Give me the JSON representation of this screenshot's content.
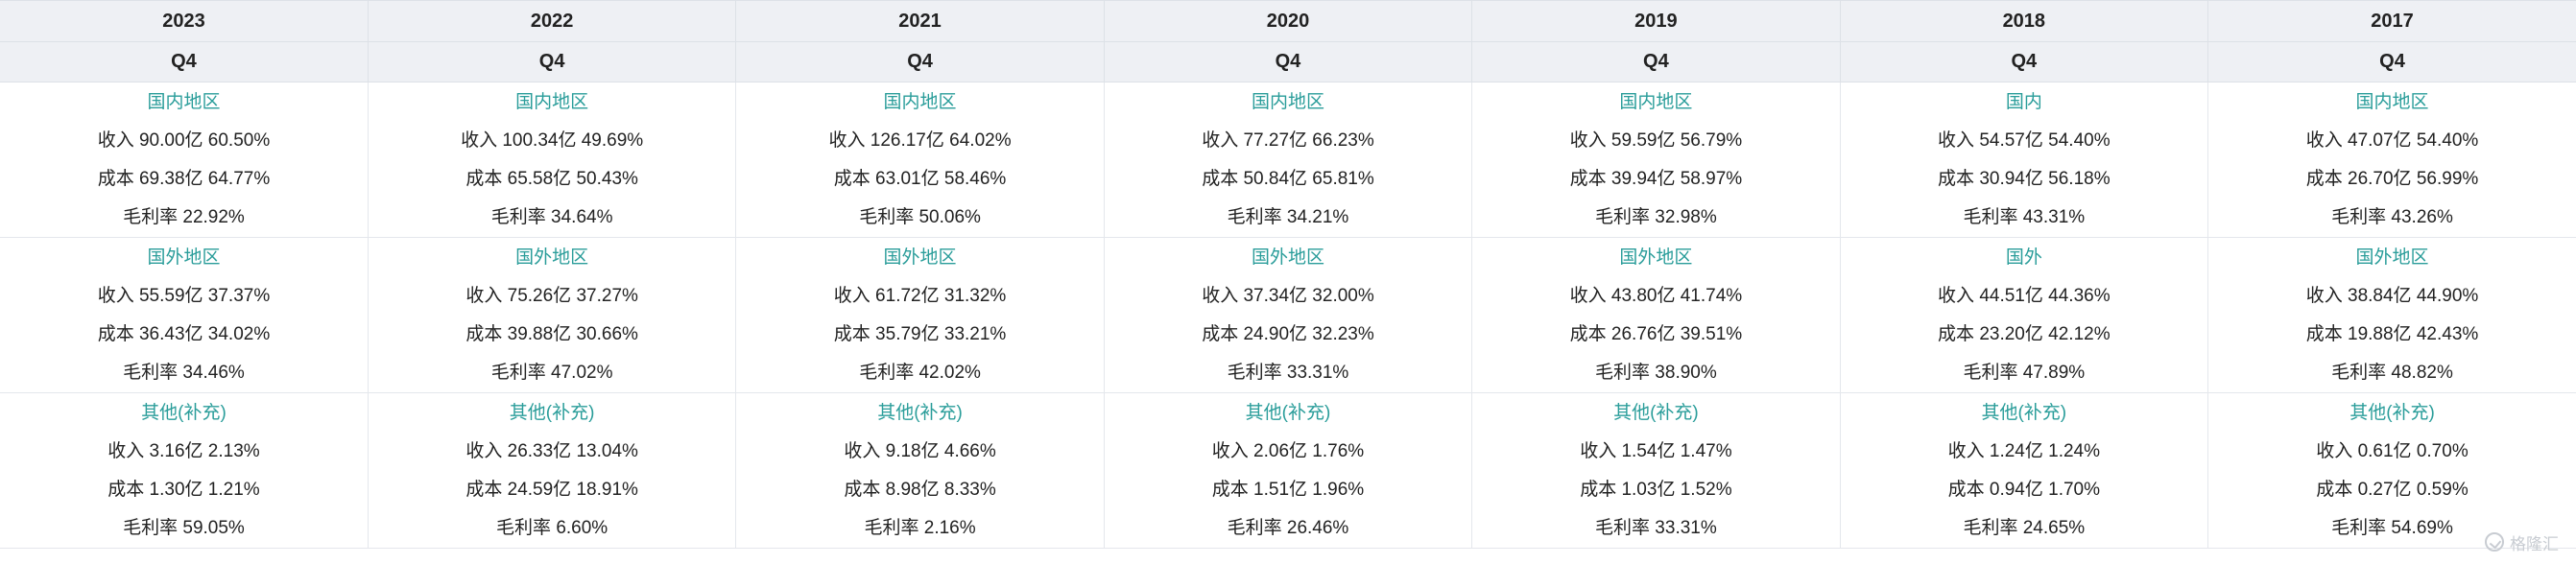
{
  "columns": [
    {
      "year": "2023",
      "quarter": "Q4",
      "groups": [
        {
          "region": "国内地区",
          "revenue": "收入 90.00亿 60.50%",
          "cost": "成本 69.38亿 64.77%",
          "margin": "毛利率 22.92%"
        },
        {
          "region": "国外地区",
          "revenue": "收入 55.59亿 37.37%",
          "cost": "成本 36.43亿 34.02%",
          "margin": "毛利率 34.46%"
        },
        {
          "region": "其他(补充)",
          "revenue": "收入 3.16亿 2.13%",
          "cost": "成本 1.30亿 1.21%",
          "margin": "毛利率 59.05%"
        }
      ]
    },
    {
      "year": "2022",
      "quarter": "Q4",
      "groups": [
        {
          "region": "国内地区",
          "revenue": "收入 100.34亿 49.69%",
          "cost": "成本 65.58亿 50.43%",
          "margin": "毛利率 34.64%"
        },
        {
          "region": "国外地区",
          "revenue": "收入 75.26亿 37.27%",
          "cost": "成本 39.88亿 30.66%",
          "margin": "毛利率 47.02%"
        },
        {
          "region": "其他(补充)",
          "revenue": "收入 26.33亿 13.04%",
          "cost": "成本 24.59亿 18.91%",
          "margin": "毛利率 6.60%"
        }
      ]
    },
    {
      "year": "2021",
      "quarter": "Q4",
      "groups": [
        {
          "region": "国内地区",
          "revenue": "收入 126.17亿 64.02%",
          "cost": "成本 63.01亿 58.46%",
          "margin": "毛利率 50.06%"
        },
        {
          "region": "国外地区",
          "revenue": "收入 61.72亿 31.32%",
          "cost": "成本 35.79亿 33.21%",
          "margin": "毛利率 42.02%"
        },
        {
          "region": "其他(补充)",
          "revenue": "收入 9.18亿 4.66%",
          "cost": "成本 8.98亿 8.33%",
          "margin": "毛利率 2.16%"
        }
      ]
    },
    {
      "year": "2020",
      "quarter": "Q4",
      "groups": [
        {
          "region": "国内地区",
          "revenue": "收入 77.27亿 66.23%",
          "cost": "成本 50.84亿 65.81%",
          "margin": "毛利率 34.21%"
        },
        {
          "region": "国外地区",
          "revenue": "收入 37.34亿 32.00%",
          "cost": "成本 24.90亿 32.23%",
          "margin": "毛利率 33.31%"
        },
        {
          "region": "其他(补充)",
          "revenue": "收入 2.06亿 1.76%",
          "cost": "成本 1.51亿 1.96%",
          "margin": "毛利率 26.46%"
        }
      ]
    },
    {
      "year": "2019",
      "quarter": "Q4",
      "groups": [
        {
          "region": "国内地区",
          "revenue": "收入 59.59亿 56.79%",
          "cost": "成本 39.94亿 58.97%",
          "margin": "毛利率 32.98%"
        },
        {
          "region": "国外地区",
          "revenue": "收入 43.80亿 41.74%",
          "cost": "成本 26.76亿 39.51%",
          "margin": "毛利率 38.90%"
        },
        {
          "region": "其他(补充)",
          "revenue": "收入 1.54亿 1.47%",
          "cost": "成本 1.03亿 1.52%",
          "margin": "毛利率 33.31%"
        }
      ]
    },
    {
      "year": "2018",
      "quarter": "Q4",
      "groups": [
        {
          "region": "国内",
          "revenue": "收入 54.57亿 54.40%",
          "cost": "成本 30.94亿 56.18%",
          "margin": "毛利率 43.31%"
        },
        {
          "region": "国外",
          "revenue": "收入 44.51亿 44.36%",
          "cost": "成本 23.20亿 42.12%",
          "margin": "毛利率 47.89%"
        },
        {
          "region": "其他(补充)",
          "revenue": "收入 1.24亿 1.24%",
          "cost": "成本 0.94亿 1.70%",
          "margin": "毛利率 24.65%"
        }
      ]
    },
    {
      "year": "2017",
      "quarter": "Q4",
      "groups": [
        {
          "region": "国内地区",
          "revenue": "收入 47.07亿 54.40%",
          "cost": "成本 26.70亿 56.99%",
          "margin": "毛利率 43.26%"
        },
        {
          "region": "国外地区",
          "revenue": "收入 38.84亿 44.90%",
          "cost": "成本 19.88亿 42.43%",
          "margin": "毛利率 48.82%"
        },
        {
          "region": "其他(补充)",
          "revenue": "收入 0.61亿 0.70%",
          "cost": "成本 0.27亿 0.59%",
          "margin": "毛利率 54.69%"
        }
      ]
    }
  ],
  "watermark": {
    "text": "格隆汇",
    "icon": "gelonghui-logo-icon"
  },
  "colors": {
    "region_text": "#2a9d9a",
    "header_bg": "#eef0f4",
    "grid_line": "#e4e7ec"
  }
}
